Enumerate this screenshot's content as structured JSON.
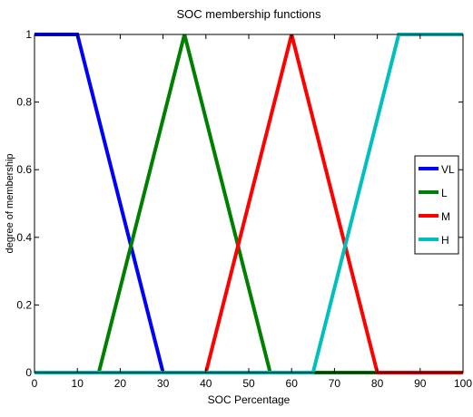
{
  "chart_data": {
    "type": "line",
    "title": "SOC membership functions",
    "xlabel": "SOC Percentage",
    "ylabel": "degree of membership",
    "xlim": [
      0,
      100
    ],
    "ylim": [
      0,
      1
    ],
    "xticks": [
      0,
      10,
      20,
      30,
      40,
      50,
      60,
      70,
      80,
      90,
      100
    ],
    "yticks": [
      0,
      0.2,
      0.4,
      0.6,
      0.8,
      1
    ],
    "xtick_labels": [
      "0",
      "10",
      "20",
      "30",
      "40",
      "50",
      "60",
      "70",
      "80",
      "90",
      "100"
    ],
    "ytick_labels": [
      "0",
      "0.2",
      "0.4",
      "0.6",
      "0.8",
      "1"
    ],
    "grid": false,
    "legend_position": "right",
    "series": [
      {
        "name": "VL",
        "color": "#0000ff",
        "x": [
          0,
          10,
          30,
          100
        ],
        "y": [
          1,
          1,
          0,
          0
        ]
      },
      {
        "name": "L",
        "color": "#008000",
        "x": [
          0,
          15,
          35,
          55,
          100
        ],
        "y": [
          0,
          0,
          1,
          0,
          0
        ]
      },
      {
        "name": "M",
        "color": "#ff0000",
        "x": [
          0,
          40,
          60,
          80,
          100
        ],
        "y": [
          0,
          0,
          1,
          0,
          0
        ]
      },
      {
        "name": "H",
        "color": "#00bfbf",
        "x": [
          0,
          65,
          85,
          100
        ],
        "y": [
          0,
          0,
          1,
          1
        ]
      }
    ]
  }
}
